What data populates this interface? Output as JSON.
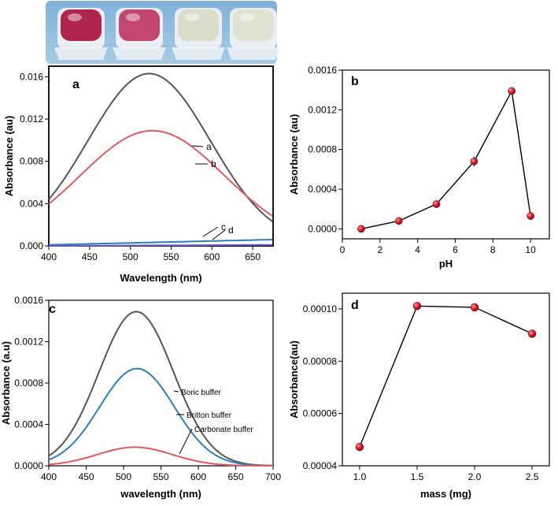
{
  "photo": {
    "description_icon": "four-sample-vials-photo-icon",
    "vial_colors": [
      "#b0254f",
      "#c24670",
      "#dcdcca",
      "#e2e2d4"
    ]
  },
  "chart_data": [
    {
      "id": "a",
      "panel_label": "a",
      "type": "line",
      "xlabel": "Wavelength (nm)",
      "ylabel": "Absorbance (au)",
      "xlim": [
        400,
        675
      ],
      "ylim": [
        0,
        0.017
      ],
      "xticks": [
        400,
        450,
        500,
        550,
        600,
        650
      ],
      "yticks": [
        0.0,
        0.004,
        0.008,
        0.012,
        0.016
      ],
      "ytick_labels": [
        "0.000",
        "0.004",
        "0.008",
        "0.012",
        "0.016"
      ],
      "series": [
        {
          "name": "a",
          "color": "#555555",
          "peak_x": 523,
          "peak_y": 0.0161,
          "width": 75,
          "baseline": 0.0002
        },
        {
          "name": "b",
          "color": "#e0595e",
          "peak_x": 527,
          "peak_y": 0.0107,
          "width": 88,
          "baseline": 0.0002
        },
        {
          "name": "c",
          "color": "#2c7fb8",
          "linear": [
            [
              400,
              0.0001
            ],
            [
              675,
              0.0006
            ]
          ]
        },
        {
          "name": "d",
          "color": "#6a5acd",
          "linear": [
            [
              400,
              0.0
            ],
            [
              675,
              0.0001
            ]
          ]
        }
      ],
      "annotations": [
        "a",
        "b",
        "c",
        "d"
      ]
    },
    {
      "id": "b",
      "panel_label": "b",
      "type": "scatter",
      "xlabel": "pH",
      "ylabel": "Absorbance (au)",
      "xlim": [
        0,
        11
      ],
      "ylim": [
        -0.0001,
        0.0016
      ],
      "xticks": [
        0,
        2,
        4,
        6,
        8,
        10
      ],
      "yticks": [
        0.0,
        0.0004,
        0.0008,
        0.0012,
        0.0016
      ],
      "ytick_labels": [
        "0.0000",
        "0.0004",
        "0.0008",
        "0.0012",
        "0.0016"
      ],
      "x": [
        1,
        3,
        5,
        7,
        9,
        10
      ],
      "y": [
        0.0,
        8e-05,
        0.00025,
        0.00068,
        0.00139,
        0.00013
      ],
      "err": [
        1e-05,
        2e-05,
        4e-05,
        5e-05,
        2e-05,
        1e-05
      ],
      "color": "#d61f2c"
    },
    {
      "id": "c",
      "panel_label": "c",
      "type": "line",
      "xlabel": "wavelength (nm)",
      "ylabel": "Absorbance (a.u)",
      "xlim": [
        400,
        700
      ],
      "ylim": [
        0,
        0.0016
      ],
      "xticks": [
        400,
        450,
        500,
        550,
        600,
        650,
        700
      ],
      "yticks": [
        0.0,
        0.0004,
        0.0008,
        0.0012,
        0.0016
      ],
      "ytick_labels": [
        "0.0000",
        "0.0004",
        "0.0008",
        "0.0012",
        "0.0016"
      ],
      "series": [
        {
          "name": "Boric buffer",
          "color": "#555555",
          "peak_x": 517,
          "peak_y": 0.00149,
          "width": 50
        },
        {
          "name": "Britton buffer",
          "color": "#2c7fb8",
          "peak_x": 518,
          "peak_y": 0.00094,
          "width": 50
        },
        {
          "name": "Carbonate buffer",
          "color": "#e0595e",
          "peak_x": 515,
          "peak_y": 0.00018,
          "width": 50
        }
      ],
      "annotations": [
        "Boric buffer",
        "Britton buffer",
        "Carbonate buffer"
      ]
    },
    {
      "id": "d",
      "panel_label": "d",
      "type": "scatter",
      "xlabel": "mass (mg)",
      "ylabel": "Absorbance(au)",
      "xlim": [
        0.85,
        2.65
      ],
      "ylim": [
        4e-05,
        0.000106
      ],
      "xticks": [
        1.0,
        1.5,
        2.0,
        2.5
      ],
      "xtick_labels": [
        "1.0",
        "1.5",
        "2.0",
        "2.5"
      ],
      "yticks": [
        4e-05,
        6e-05,
        8e-05,
        0.0001
      ],
      "ytick_labels": [
        "0.00004",
        "0.00006",
        "0.00008",
        "0.00010"
      ],
      "x": [
        1.0,
        1.5,
        2.0,
        2.5
      ],
      "y": [
        4.72e-05,
        0.0001011,
        0.0001006,
        9.05e-05
      ],
      "color": "#d61f2c"
    }
  ]
}
